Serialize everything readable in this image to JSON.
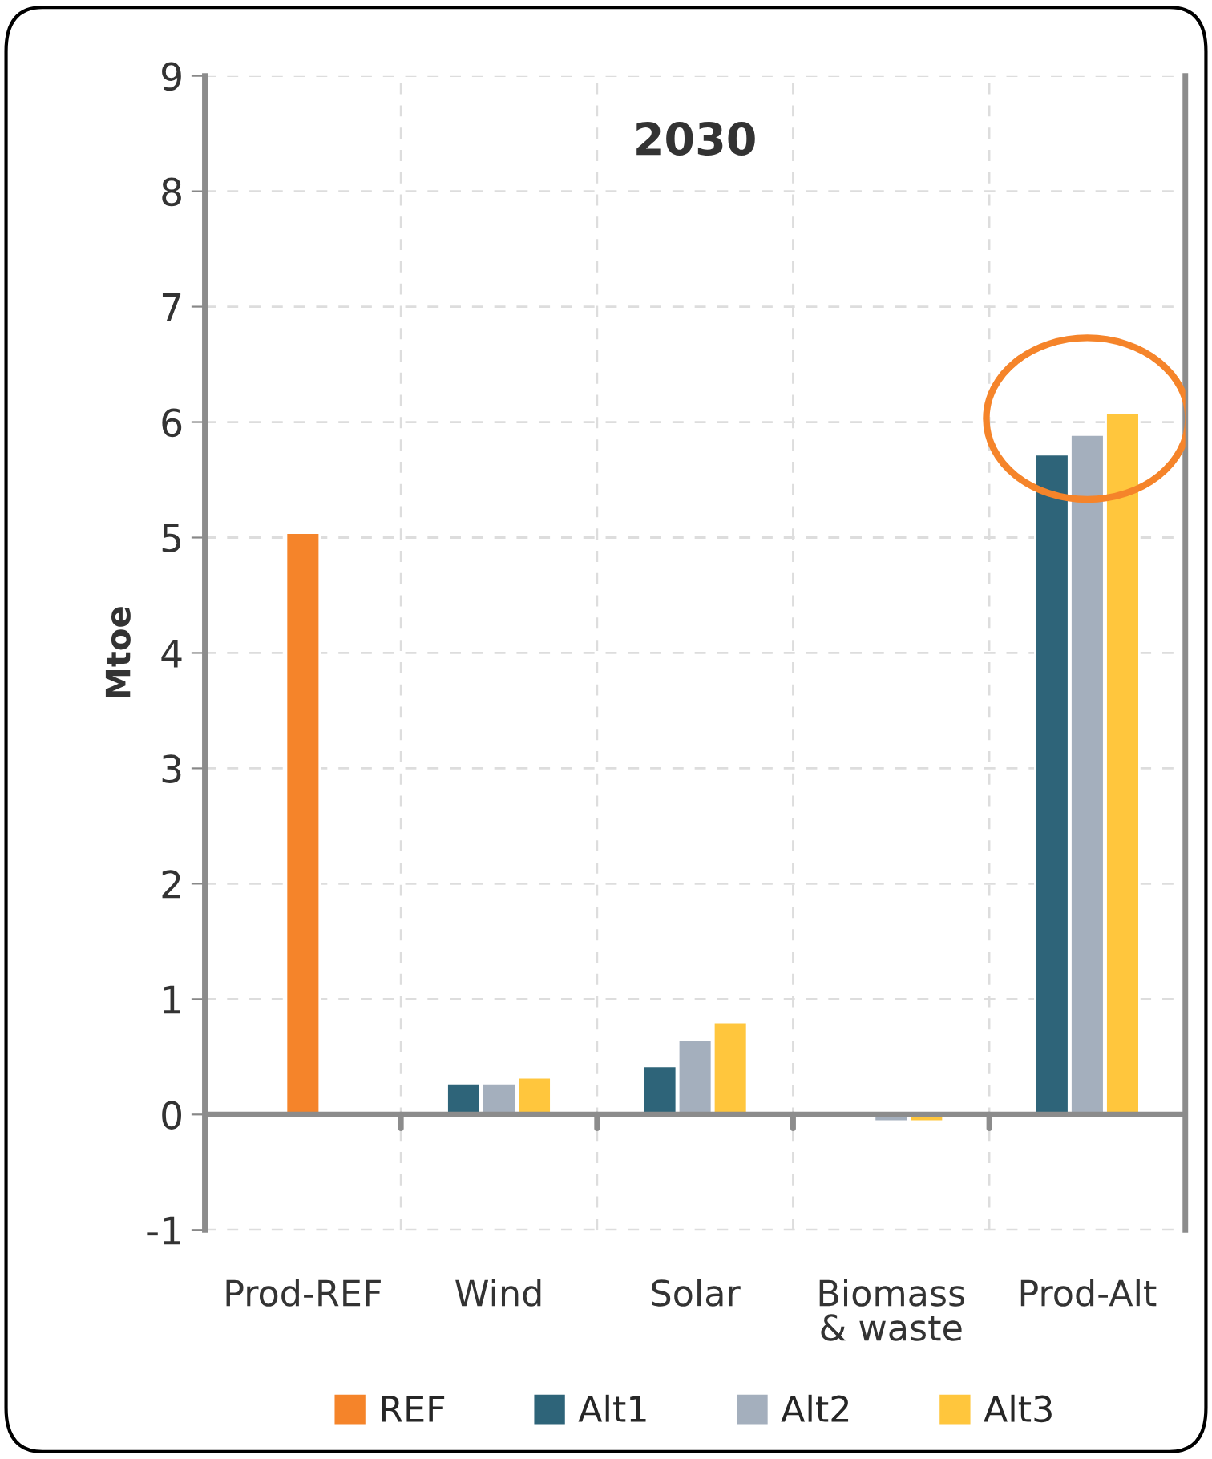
{
  "chart_data": {
    "type": "bar",
    "title": "2030",
    "ylabel": "Mtoe",
    "categories": [
      "Prod-REF",
      "Wind",
      "Solar",
      "Biomass\n& waste",
      "Prod-Alt"
    ],
    "series": [
      {
        "name": "REF",
        "color": "#f5842a",
        "values": [
          5.04,
          null,
          null,
          null,
          null
        ]
      },
      {
        "name": "Alt1",
        "color": "#2e6479",
        "values": [
          null,
          0.27,
          0.42,
          -0.02,
          5.72
        ]
      },
      {
        "name": "Alt2",
        "color": "#a4afbd",
        "values": [
          null,
          0.27,
          0.65,
          -0.06,
          5.89
        ]
      },
      {
        "name": "Alt3",
        "color": "#ffc63d",
        "values": [
          null,
          0.32,
          0.8,
          -0.06,
          6.08
        ]
      }
    ],
    "ylim": [
      -1,
      9
    ],
    "yticks": [
      -1,
      0,
      1,
      2,
      3,
      4,
      5,
      6,
      7,
      8,
      9
    ],
    "grid": true,
    "legend": "bottom"
  }
}
